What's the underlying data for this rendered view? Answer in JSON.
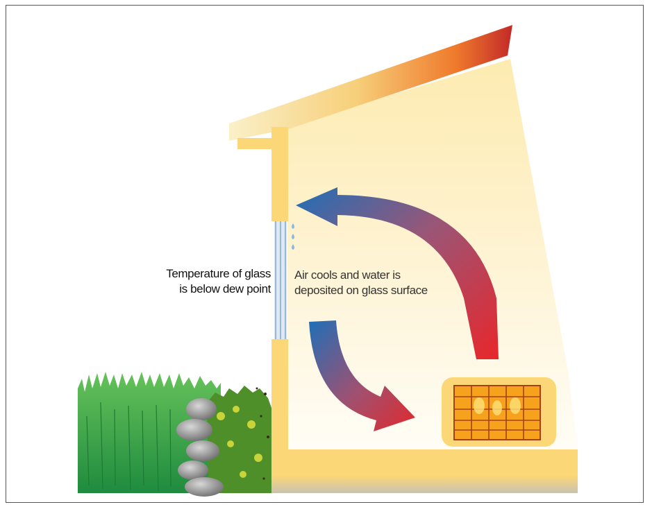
{
  "colors": {
    "wall": "#fbd777",
    "roof_light": "#f9e3a4",
    "roof_dark": "#c32a28",
    "arrow_blue": "#1f6fb8",
    "arrow_red": "#e8262b",
    "heater_orange": "#f6a21c",
    "grass": "#33a84a",
    "rock": "#9c9c9c"
  },
  "labels": {
    "glass_line1": "Temperature of glass",
    "glass_line2": "is below dew point",
    "air_line1": "Air cools and water is",
    "air_line2": "deposited on glass surface"
  },
  "icons": [
    "water-droplet-icon",
    "heater-icon",
    "grass-icon",
    "rock-icon"
  ]
}
